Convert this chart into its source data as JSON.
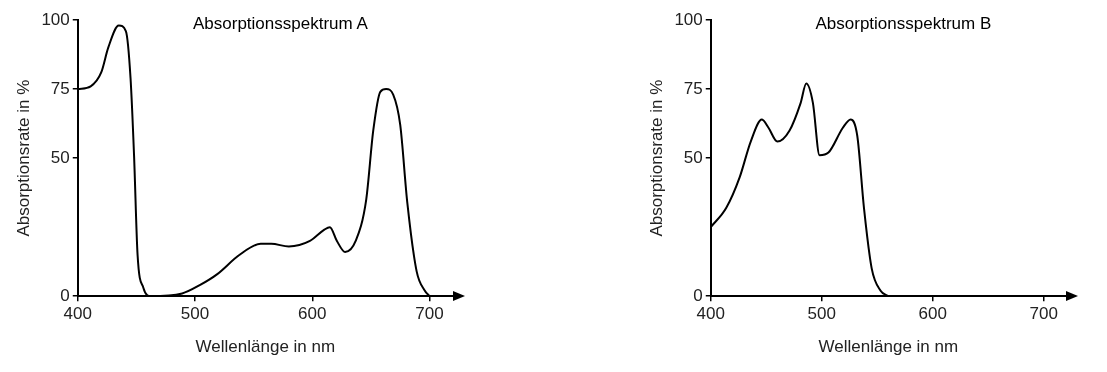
{
  "chart_data": [
    {
      "type": "line",
      "title": "Absorptionsspektrum A",
      "xlabel": "Wellenlänge in nm",
      "ylabel": "Absorptionsrate in %",
      "xlim": [
        400,
        720
      ],
      "xticks": [
        400,
        500,
        600,
        700
      ],
      "ylim": [
        0,
        100
      ],
      "yticks": [
        0,
        50,
        75,
        100
      ],
      "grid": false,
      "legend": false,
      "marker": "none",
      "line_style": "solid",
      "series": [
        {
          "color": "#000000",
          "x": [
            400,
            411,
            420,
            426,
            435,
            441,
            445,
            448,
            451,
            456,
            462,
            489,
            504,
            519,
            538,
            556,
            565,
            580,
            598,
            610,
            615,
            621,
            628,
            637,
            646,
            652,
            658,
            663,
            669,
            675,
            681,
            689,
            696,
            700
          ],
          "values": [
            75,
            76,
            81,
            90,
            98,
            96,
            79,
            51,
            15,
            3,
            0,
            1,
            4,
            8,
            15,
            19,
            19,
            18,
            20,
            24,
            25,
            20,
            16,
            20,
            35,
            60,
            74,
            75,
            73,
            62,
            34,
            9,
            2,
            0
          ]
        }
      ]
    },
    {
      "type": "line",
      "title": "Absorptionsspektrum B",
      "xlabel": "Wellenlänge in nm",
      "ylabel": "Absorptionsrate in %",
      "xlim": [
        400,
        720
      ],
      "xticks": [
        400,
        500,
        600,
        700
      ],
      "ylim": [
        0,
        100
      ],
      "yticks": [
        0,
        50,
        75,
        100
      ],
      "grid": false,
      "legend": false,
      "marker": "none",
      "line_style": "solid",
      "series": [
        {
          "color": "#000000",
          "x": [
            400,
            414,
            426,
            436,
            446,
            452,
            460,
            471,
            481,
            486,
            492,
            498,
            506,
            519,
            526,
            532,
            538,
            545,
            553,
            560
          ],
          "values": [
            25,
            32,
            43,
            56,
            64,
            61,
            56,
            60,
            70,
            77,
            70,
            51,
            52,
            61,
            64,
            58,
            32,
            10,
            2,
            0
          ]
        }
      ]
    }
  ]
}
